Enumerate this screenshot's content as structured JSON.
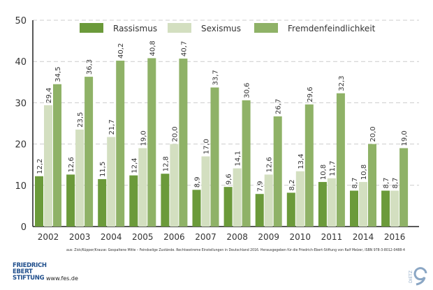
{
  "chart_data": {
    "type": "bar",
    "categories": [
      "2002",
      "2003",
      "2004",
      "2005",
      "2006",
      "2007",
      "2008",
      "2009",
      "2010",
      "2011",
      "2014",
      "2016"
    ],
    "series": [
      {
        "name": "Rassismus",
        "color": "#6b9a3a",
        "values": [
          12.2,
          12.6,
          11.5,
          12.4,
          12.8,
          8.9,
          9.6,
          7.9,
          8.2,
          10.8,
          8.7,
          8.7
        ]
      },
      {
        "name": "Sexismus",
        "color": "#d3dfc0",
        "values": [
          29.4,
          23.5,
          21.7,
          19.0,
          20.0,
          17.0,
          14.1,
          12.6,
          13.4,
          11.7,
          10.8,
          8.7
        ]
      },
      {
        "name": "Fremdenfeindlichkeit",
        "color": "#8fb267",
        "values": [
          34.5,
          36.3,
          40.2,
          40.8,
          40.7,
          33.7,
          30.6,
          26.7,
          29.6,
          32.3,
          20.0,
          19.0
        ]
      }
    ],
    "ylim": [
      0,
      50
    ],
    "yticks": [
      0,
      10,
      20,
      30,
      40,
      50
    ],
    "grid": true,
    "legend": "top",
    "decimal_separator": ","
  },
  "footer": {
    "source": "aus: Zick/Küpper/Krause: Gespaltene Mitte – Feindselige Zustände. Rechtsextreme Einstellungen in Deutschland 2016. Herausgegeben für die Friedrich-Ebert-Stiftung von Ralf Melzer, ISBN 978-3-8012-0488-4",
    "logo": "FRIEDRICH EBERT STIFTUNG",
    "url": "www.fes.de",
    "publisher_logo": "DIETZ"
  }
}
